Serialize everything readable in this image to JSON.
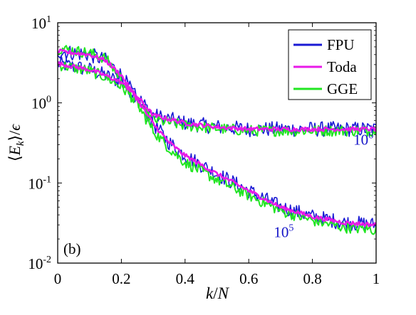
{
  "chart_data": {
    "type": "line",
    "panel_label": "(b)",
    "xlabel": "k/N",
    "ylabel": "⟨E_k⟩/ϵ",
    "xlim": [
      0,
      1
    ],
    "ylim": [
      0.01,
      10
    ],
    "yscale": "log",
    "grid": false,
    "legend_position": "top-right",
    "x_ticks": [
      "0",
      "0.2",
      "0.4",
      "0.6",
      "0.8",
      "1"
    ],
    "y_ticks": [
      {
        "base": "10",
        "exp": "1"
      },
      {
        "base": "10",
        "exp": "0"
      },
      {
        "base": "10",
        "exp": "-1"
      },
      {
        "base": "10",
        "exp": "-2"
      }
    ],
    "annotations": [
      {
        "base": "10",
        "exp": "6",
        "x": 0.96,
        "y": 0.3,
        "color": "#1515c8"
      },
      {
        "base": "10",
        "exp": "5",
        "x": 0.71,
        "y": 0.021,
        "color": "#1515c8"
      }
    ],
    "series": [
      {
        "name": "FPU",
        "color": "#1a1ad4",
        "curves": [
          {
            "x": [
              0,
              0.1,
              0.15,
              0.2,
              0.25,
              0.3,
              0.4,
              0.5,
              0.6,
              0.7,
              0.8,
              0.9,
              1
            ],
            "y": [
              3.1,
              2.6,
              2.2,
              1.8,
              1.2,
              0.7,
              0.56,
              0.5,
              0.47,
              0.47,
              0.47,
              0.47,
              0.47
            ]
          },
          {
            "x": [
              0,
              0.1,
              0.15,
              0.2,
              0.25,
              0.3,
              0.35,
              0.4,
              0.5,
              0.6,
              0.7,
              0.8,
              0.9,
              1
            ],
            "y": [
              4.4,
              4.0,
              3.4,
              2.2,
              1.1,
              0.55,
              0.32,
              0.22,
              0.13,
              0.08,
              0.05,
              0.038,
              0.032,
              0.03
            ]
          }
        ]
      },
      {
        "name": "Toda",
        "color": "#e81ae8",
        "curves": [
          {
            "x": [
              0,
              0.1,
              0.15,
              0.2,
              0.25,
              0.3,
              0.4,
              0.5,
              0.6,
              0.7,
              0.8,
              0.9,
              1
            ],
            "y": [
              3.1,
              2.6,
              2.2,
              1.8,
              1.2,
              0.7,
              0.56,
              0.5,
              0.47,
              0.47,
              0.47,
              0.47,
              0.47
            ]
          },
          {
            "x": [
              0,
              0.1,
              0.15,
              0.2,
              0.25,
              0.3,
              0.35,
              0.4,
              0.5,
              0.6,
              0.7,
              0.8,
              0.9,
              1
            ],
            "y": [
              4.4,
              4.0,
              3.4,
              2.2,
              1.1,
              0.55,
              0.32,
              0.22,
              0.13,
              0.08,
              0.05,
              0.038,
              0.032,
              0.03
            ]
          }
        ]
      },
      {
        "name": "GGE",
        "color": "#22e622",
        "curves": [
          {
            "x": [
              0,
              0.1,
              0.15,
              0.2,
              0.25,
              0.3,
              0.4,
              0.5,
              0.6,
              0.7,
              0.8,
              0.9,
              1
            ],
            "y": [
              3.0,
              2.5,
              2.1,
              1.6,
              1.0,
              0.62,
              0.52,
              0.48,
              0.45,
              0.45,
              0.45,
              0.45,
              0.45
            ]
          },
          {
            "x": [
              0,
              0.1,
              0.15,
              0.2,
              0.25,
              0.3,
              0.35,
              0.4,
              0.5,
              0.6,
              0.7,
              0.8,
              0.9,
              1
            ],
            "y": [
              4.8,
              4.2,
              3.6,
              2.0,
              0.95,
              0.45,
              0.27,
              0.18,
              0.11,
              0.07,
              0.045,
              0.034,
              0.028,
              0.026
            ]
          }
        ]
      }
    ]
  }
}
